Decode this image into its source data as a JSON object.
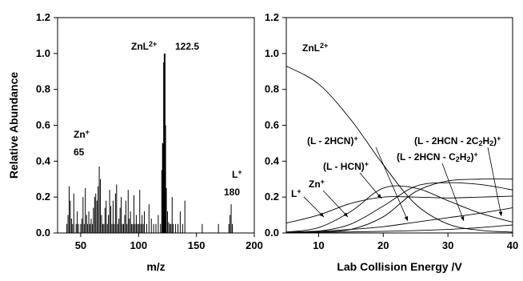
{
  "chart_data": [
    {
      "type": "bar",
      "title": "",
      "xlabel": "m/z",
      "ylabel": "Relative Abundance",
      "xlim": [
        30,
        200
      ],
      "ylim": [
        0,
        1.2
      ],
      "xticks": [
        50,
        100,
        150,
        200
      ],
      "yticks": [
        0.0,
        0.2,
        0.4,
        0.6,
        0.8,
        1.0,
        1.2
      ],
      "grid": false,
      "annotations": [
        {
          "label": "ZnL",
          "sup": "2+",
          "value": "122.5"
        },
        {
          "label": "Zn",
          "sup": "+",
          "value": "65"
        },
        {
          "label": "L",
          "sup": "+",
          "value": "180"
        }
      ],
      "x": [
        38,
        39,
        40,
        41,
        42,
        43,
        44,
        46,
        47,
        48,
        50,
        51,
        52,
        53,
        54,
        55,
        56,
        57,
        58,
        59,
        60,
        61,
        62,
        63,
        64,
        65,
        66,
        67,
        68,
        69,
        70,
        71,
        72,
        73,
        74,
        75,
        76,
        77,
        78,
        79,
        80,
        81,
        82,
        83,
        84,
        85,
        86,
        87,
        88,
        89,
        90,
        91,
        92,
        93,
        94,
        95,
        96,
        97,
        98,
        99,
        100,
        101,
        102,
        103,
        104,
        105,
        107,
        109,
        111,
        113,
        115,
        117,
        119,
        120,
        121,
        122,
        122.5,
        123,
        124,
        125,
        126,
        127,
        128,
        129,
        130,
        132,
        134,
        136,
        138,
        140,
        155,
        169,
        178,
        179,
        180,
        181
      ],
      "values": [
        0.05,
        0.1,
        0.26,
        0.18,
        0.08,
        0.05,
        0.22,
        0.05,
        0.12,
        0.05,
        0.05,
        0.08,
        0.2,
        0.05,
        0.25,
        0.1,
        0.05,
        0.12,
        0.05,
        0.08,
        0.05,
        0.14,
        0.2,
        0.22,
        0.18,
        0.26,
        0.37,
        0.3,
        0.1,
        0.05,
        0.05,
        0.14,
        0.18,
        0.05,
        0.1,
        0.24,
        0.15,
        0.05,
        0.18,
        0.05,
        0.22,
        0.27,
        0.05,
        0.08,
        0.14,
        0.2,
        0.05,
        0.05,
        0.1,
        0.18,
        0.05,
        0.24,
        0.08,
        0.12,
        0.05,
        0.05,
        0.21,
        0.05,
        0.1,
        0.05,
        0.05,
        0.24,
        0.05,
        0.1,
        0.05,
        0.12,
        0.05,
        0.16,
        0.08,
        0.05,
        0.05,
        0.1,
        0.05,
        0.35,
        0.5,
        0.95,
        1.0,
        0.6,
        0.25,
        0.12,
        0.06,
        0.05,
        0.05,
        0.2,
        0.05,
        0.05,
        0.05,
        0.12,
        0.05,
        0.18,
        0.05,
        0.05,
        0.05,
        0.1,
        0.16,
        0.05
      ]
    },
    {
      "type": "line",
      "title": "",
      "xlabel": "Lab Collision Energy /V",
      "ylabel": "",
      "xlim": [
        5,
        40
      ],
      "ylim": [
        0,
        1.2
      ],
      "xticks": [
        10,
        20,
        30,
        40
      ],
      "yticks": [
        0.0,
        0.2,
        0.4,
        0.6,
        0.8,
        1.0,
        1.2
      ],
      "grid": false,
      "x": [
        5,
        10,
        15,
        20,
        25,
        30,
        35,
        40
      ],
      "series": [
        {
          "name": "ZnL2+",
          "label_parts": [
            {
              "t": "ZnL"
            },
            {
              "t": "2+",
              "sup": true
            }
          ],
          "values": [
            0.93,
            0.83,
            0.63,
            0.38,
            0.16,
            0.05,
            0.015,
            0.005
          ]
        },
        {
          "name": "L+",
          "label_parts": [
            {
              "t": "L"
            },
            {
              "t": "+",
              "sup": true
            }
          ],
          "values": [
            0.003,
            0.004,
            0.006,
            0.009,
            0.013,
            0.02,
            0.03,
            0.045
          ]
        },
        {
          "name": "Zn+",
          "label_parts": [
            {
              "t": "Zn"
            },
            {
              "t": "+",
              "sup": true
            }
          ],
          "values": [
            0.005,
            0.01,
            0.02,
            0.035,
            0.06,
            0.085,
            0.11,
            0.14
          ]
        },
        {
          "name": "(L - HCN)+",
          "label_parts": [
            {
              "t": "(L - HCN)"
            },
            {
              "t": "+",
              "sup": true
            }
          ],
          "values": [
            0.055,
            0.1,
            0.165,
            0.2,
            0.2,
            0.195,
            0.2,
            0.205
          ]
        },
        {
          "name": "(L - 2HCN)+",
          "label_parts": [
            {
              "t": "(L - 2HCN)"
            },
            {
              "t": "+",
              "sup": true
            }
          ],
          "values": [
            0.005,
            0.03,
            0.12,
            0.25,
            0.25,
            0.18,
            0.11,
            0.06
          ]
        },
        {
          "name": "(L - 2HCN - C2H2)+",
          "label_parts": [
            {
              "t": "(L - 2HCN - C"
            },
            {
              "t": "2",
              "sub": true
            },
            {
              "t": "H"
            },
            {
              "t": "2",
              "sub": true
            },
            {
              "t": ")"
            },
            {
              "t": "+",
              "sup": true
            }
          ],
          "values": [
            0.002,
            0.01,
            0.05,
            0.15,
            0.26,
            0.28,
            0.27,
            0.24
          ]
        },
        {
          "name": "(L - 2HCN - 2C2H2)+",
          "label_parts": [
            {
              "t": "(L - 2HCN - 2C"
            },
            {
              "t": "2",
              "sub": true
            },
            {
              "t": "H"
            },
            {
              "t": "2",
              "sub": true
            },
            {
              "t": ")"
            },
            {
              "t": "+",
              "sup": true
            }
          ],
          "values": [
            0.0,
            0.005,
            0.02,
            0.09,
            0.23,
            0.29,
            0.3,
            0.3
          ]
        }
      ]
    }
  ]
}
